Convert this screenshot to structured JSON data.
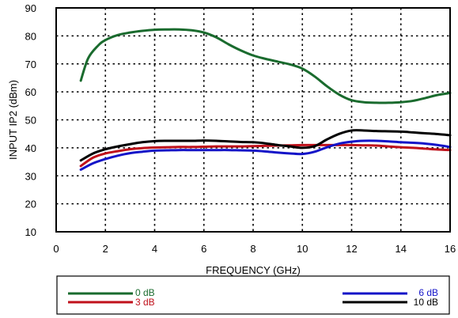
{
  "chart_data": {
    "type": "line",
    "xlabel": "FREQUENCY (GHz)",
    "ylabel": "INPUT IP2 (dBm)",
    "xlim": [
      0,
      16
    ],
    "ylim": [
      10,
      90
    ],
    "xticks": [
      0,
      2,
      4,
      6,
      8,
      10,
      12,
      14,
      16
    ],
    "yticks": [
      10,
      20,
      30,
      40,
      50,
      60,
      70,
      80,
      90
    ],
    "grid": true,
    "legend_position": "bottom",
    "series": [
      {
        "name": "0 dB",
        "color": "#1a6b2e",
        "x": [
          1,
          1.3,
          1.7,
          2,
          2.5,
          3,
          3.5,
          4,
          4.5,
          5,
          5.5,
          6,
          6.5,
          7,
          7.5,
          8,
          8.5,
          9,
          9.5,
          10,
          10.5,
          11,
          11.5,
          12,
          12.5,
          13,
          13.5,
          14,
          14.5,
          15,
          15.5,
          16
        ],
        "y": [
          64,
          72,
          76.5,
          78.5,
          80.3,
          81.2,
          81.8,
          82.2,
          82.3,
          82.3,
          82,
          81.2,
          79.5,
          77,
          74.8,
          73,
          71.8,
          70.8,
          69.8,
          68.3,
          65.5,
          62,
          59,
          57,
          56.3,
          56.1,
          56.1,
          56.3,
          56.8,
          57.8,
          58.9,
          59.6
        ]
      },
      {
        "name": "3 dB",
        "color": "#c0111b",
        "x": [
          1,
          1.5,
          2,
          2.5,
          3,
          3.5,
          4,
          4.5,
          5,
          5.5,
          6,
          6.5,
          7,
          7.5,
          8,
          8.5,
          9,
          9.5,
          10,
          10.5,
          11,
          11.5,
          12,
          12.5,
          13,
          13.5,
          14,
          14.5,
          15,
          15.5,
          16
        ],
        "y": [
          33.5,
          36.5,
          38,
          38.8,
          39.5,
          39.9,
          40.1,
          40.2,
          40.3,
          40.3,
          40.4,
          40.5,
          40.5,
          40.5,
          40.6,
          40.7,
          40.8,
          40.9,
          41,
          41,
          41,
          41,
          41,
          40.9,
          40.8,
          40.5,
          40.2,
          40,
          39.7,
          39.4,
          39.2
        ]
      },
      {
        "name": "6 dB",
        "color": "#1414c8",
        "x": [
          1,
          1.5,
          2,
          2.5,
          3,
          3.5,
          4,
          4.5,
          5,
          5.5,
          6,
          6.5,
          7,
          7.5,
          8,
          8.5,
          9,
          9.5,
          10,
          10.5,
          11,
          11.5,
          12,
          12.5,
          13,
          13.5,
          14,
          14.5,
          15,
          15.5,
          16
        ],
        "y": [
          32.2,
          34.5,
          36,
          37.2,
          38.1,
          38.6,
          39,
          39.1,
          39.2,
          39.2,
          39.2,
          39.2,
          39.2,
          39.1,
          39,
          38.7,
          38.3,
          38,
          37.8,
          38.6,
          40.2,
          41.5,
          42.2,
          42.5,
          42.5,
          42.3,
          42,
          41.8,
          41.5,
          41,
          40.3
        ]
      },
      {
        "name": "10 dB",
        "color": "#000000",
        "x": [
          1,
          1.5,
          2,
          2.5,
          3,
          3.5,
          4,
          4.5,
          5,
          5.5,
          6,
          6.5,
          7,
          7.5,
          8,
          8.5,
          9,
          9.5,
          10,
          10.5,
          11,
          11.5,
          12,
          12.5,
          13,
          13.5,
          14,
          14.5,
          15,
          15.5,
          16
        ],
        "y": [
          35.5,
          38,
          39.5,
          40.5,
          41.3,
          42,
          42.4,
          42.5,
          42.5,
          42.5,
          42.6,
          42.5,
          42.3,
          42.1,
          42,
          41.6,
          41,
          40.5,
          40,
          40.6,
          43,
          45,
          46.2,
          46.2,
          46,
          45.9,
          45.8,
          45.5,
          45.2,
          44.9,
          44.5
        ]
      }
    ]
  }
}
